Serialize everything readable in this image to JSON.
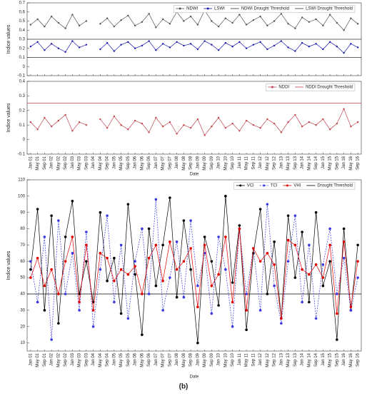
{
  "chart_data": [
    {
      "type": "line",
      "ylabel": "Indice values",
      "ylim": [
        -0.1,
        0.7
      ],
      "yticks": [
        -0.1,
        0,
        0.1,
        0.2,
        0.3,
        0.4,
        0.5,
        0.6,
        0.7
      ],
      "legend": "upper right",
      "series": [
        {
          "name": "NDWI",
          "color": "#555555",
          "values": [
            0.46,
            0.52,
            0.44,
            0.55,
            0.48,
            0.42,
            0.57,
            0.45,
            0.5,
            null,
            0.47,
            0.53,
            0.44,
            0.51,
            0.56,
            0.45,
            0.49,
            0.58,
            0.43,
            0.52,
            0.47,
            0.6,
            0.5,
            0.55,
            0.46,
            0.62,
            0.5,
            0.44,
            0.53,
            0.48,
            0.57,
            0.46,
            0.51,
            0.55,
            0.45,
            0.5,
            0.58,
            0.47,
            0.42,
            0.54,
            0.49,
            0.52,
            0.45,
            0.57,
            0.48,
            0.4,
            0.53,
            0.47
          ]
        },
        {
          "name": "LSWI",
          "color": "#1a1aa8",
          "values": [
            0.22,
            0.27,
            0.18,
            0.25,
            0.2,
            0.16,
            0.28,
            0.21,
            0.24,
            null,
            0.19,
            0.26,
            0.17,
            0.24,
            0.27,
            0.2,
            0.23,
            0.28,
            0.18,
            0.25,
            0.21,
            0.27,
            0.23,
            0.25,
            0.19,
            0.28,
            0.24,
            0.18,
            0.26,
            0.22,
            0.27,
            0.2,
            0.24,
            0.27,
            0.19,
            0.23,
            0.28,
            0.21,
            0.17,
            0.26,
            0.22,
            0.25,
            0.19,
            0.27,
            0.22,
            0.15,
            0.25,
            0.21
          ]
        }
      ],
      "thresholds": [
        {
          "name": "NDWI Drought Threshold",
          "color": "#333333",
          "value": 0.3
        },
        {
          "name": "LSWI Drought Threshold",
          "color": "#333333",
          "value": 0.1
        }
      ]
    },
    {
      "type": "line",
      "ylabel": "Indice values",
      "xlabel": "Date",
      "ylim": [
        -0.1,
        0.4
      ],
      "yticks": [
        -0.1,
        0,
        0.1,
        0.2,
        0.3,
        0.4
      ],
      "legend": "upper right",
      "categories": [
        "Jan 01",
        "May 01",
        "Sep 01",
        "Jan 02",
        "May 02",
        "Sep 02",
        "Jan 03",
        "May 03",
        "Sep 03",
        "Jan 04",
        "May 04",
        "Sep 04",
        "Jan 05",
        "May 05",
        "Sep 05",
        "Jan 06",
        "May 06",
        "Sep 06",
        "Jan 07",
        "May 07",
        "Sep 07",
        "Jan 08",
        "May 08",
        "Sep 08",
        "Jan 09",
        "May 09",
        "Sep 09",
        "Jan 10",
        "May 10",
        "Sep 10",
        "Jan 11",
        "May 11",
        "Sep 11",
        "Jan 12",
        "May 12",
        "Sep 12",
        "Jan 13",
        "May 13",
        "Sep 13",
        "Jan 14",
        "May 14",
        "Sep 14",
        "Jan 15",
        "May 15",
        "Sep 15",
        "Jan 16",
        "May 16",
        "Sep 16"
      ],
      "series": [
        {
          "name": "NDDI",
          "color": "#c0454f",
          "values": [
            0.12,
            0.07,
            0.15,
            0.09,
            0.13,
            0.17,
            0.06,
            0.12,
            0.1,
            null,
            0.14,
            0.08,
            0.16,
            0.1,
            0.07,
            0.13,
            0.11,
            0.05,
            0.15,
            0.09,
            0.12,
            0.04,
            0.1,
            0.08,
            0.14,
            0.03,
            0.09,
            0.15,
            0.08,
            0.11,
            0.06,
            0.13,
            0.1,
            0.08,
            0.14,
            0.11,
            0.05,
            0.12,
            0.17,
            0.09,
            0.12,
            0.1,
            0.14,
            0.07,
            0.11,
            0.21,
            0.09,
            0.12
          ]
        }
      ],
      "thresholds": [
        {
          "name": "NDDI Drought Threshold",
          "color": "#c0454f",
          "value": 0.25
        }
      ]
    },
    {
      "type": "line",
      "ylabel": "Indice values",
      "xlabel": "Date",
      "ylim": [
        5,
        110
      ],
      "yticks": [
        10,
        20,
        30,
        40,
        50,
        60,
        70,
        80,
        90,
        100,
        110
      ],
      "legend": "upper right",
      "categories": [
        "Jan 01",
        "May 01",
        "Sep 01",
        "Jan 02",
        "May 02",
        "Sep 02",
        "Jan 03",
        "May 03",
        "Sep 03",
        "Jan 04",
        "May 04",
        "Sep 04",
        "Jan 05",
        "May 05",
        "Sep 05",
        "Jan 06",
        "May 06",
        "Sep 06",
        "Jan 07",
        "May 07",
        "Sep 07",
        "Jan 08",
        "May 08",
        "Sep 08",
        "Jan 09",
        "May 09",
        "Sep 09",
        "Jan 10",
        "May 10",
        "Sep 10",
        "Jan 11",
        "May 11",
        "Sep 11",
        "Jan 12",
        "May 12",
        "Sep 12",
        "Jan 13",
        "May 13",
        "Sep 13",
        "Jan 14",
        "May 14",
        "Sep 14",
        "Jan 15",
        "May 15",
        "Sep 15",
        "Jan 16",
        "May 16",
        "Sep 16"
      ],
      "series": [
        {
          "name": "VCI",
          "color": "#000000",
          "values": [
            55,
            92,
            30,
            88,
            22,
            75,
            97,
            40,
            60,
            35,
            90,
            48,
            62,
            28,
            95,
            52,
            15,
            80,
            45,
            70,
            99,
            38,
            85,
            55,
            10,
            75,
            60,
            33,
            100,
            47,
            82,
            18,
            65,
            92,
            40,
            72,
            25,
            88,
            50,
            78,
            35,
            90,
            45,
            60,
            12,
            80,
            30,
            70
          ]
        },
        {
          "name": "TCI",
          "color": "#3a3ae0",
          "dashed": true,
          "values": [
            60,
            35,
            75,
            12,
            85,
            40,
            65,
            30,
            78,
            20,
            55,
            88,
            35,
            70,
            25,
            60,
            80,
            40,
            98,
            30,
            50,
            72,
            38,
            85,
            45,
            65,
            28,
            75,
            55,
            20,
            80,
            40,
            68,
            30,
            95,
            45,
            22,
            60,
            88,
            35,
            70,
            25,
            58,
            80,
            40,
            62,
            30,
            50
          ]
        },
        {
          "name": "VHI",
          "color": "#e00000",
          "values": [
            50,
            62,
            45,
            55,
            40,
            60,
            75,
            35,
            70,
            30,
            65,
            62,
            48,
            55,
            52,
            57,
            40,
            62,
            70,
            48,
            72,
            55,
            60,
            68,
            32,
            70,
            45,
            52,
            75,
            35,
            80,
            30,
            68,
            60,
            65,
            58,
            25,
            73,
            70,
            55,
            52,
            58,
            50,
            70,
            28,
            72,
            32,
            60
          ]
        }
      ],
      "thresholds": [
        {
          "name": "Drought Threshold",
          "color": "#000000",
          "value": 40
        }
      ]
    }
  ],
  "caption": "(b)"
}
